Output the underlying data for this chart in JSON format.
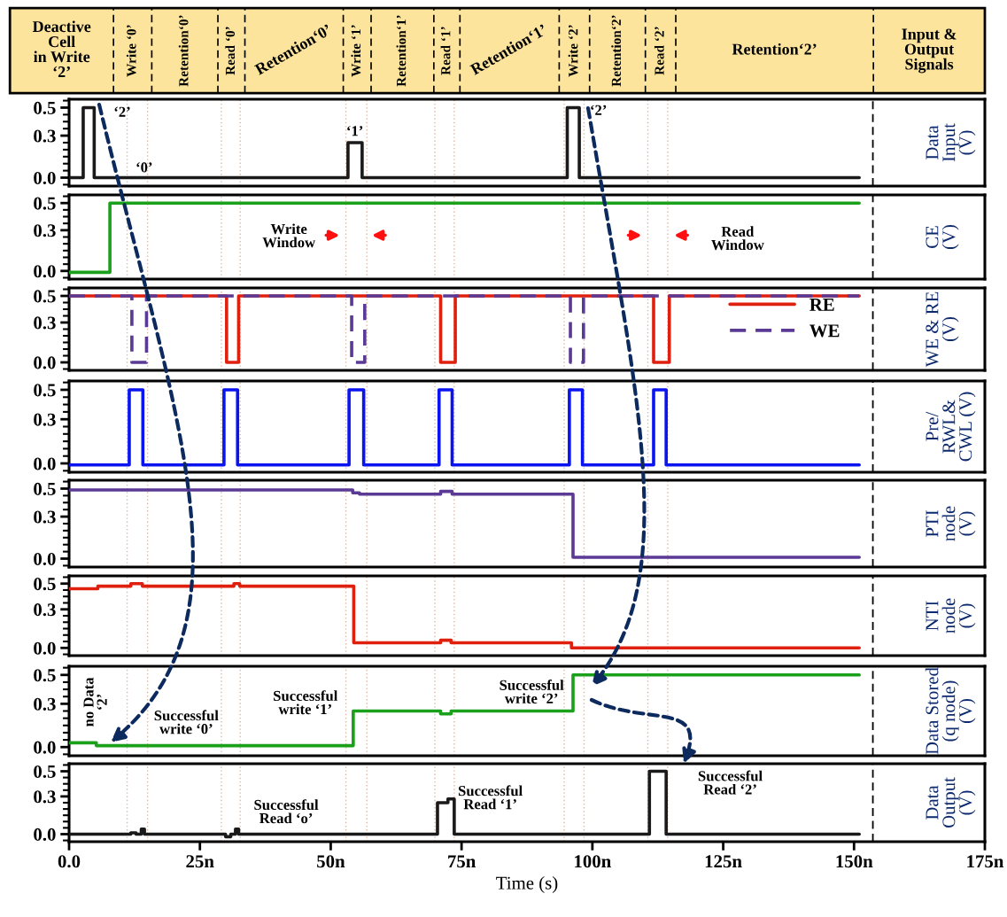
{
  "chart_data": [
    {
      "type": "line",
      "ylabel": "Data\nInput\n(V)",
      "xlim": [
        0,
        175
      ],
      "ylim": [
        -0.06,
        0.56
      ],
      "tick_labels": "y",
      "yticks": [
        {
          "value": -0.05,
          "label": null
        },
        {
          "value": 0,
          "label": "0.0"
        },
        {
          "value": 0.05,
          "label": null
        },
        {
          "value": 0.1,
          "label": null
        },
        {
          "value": 0.15,
          "label": null
        },
        {
          "value": 0.2,
          "label": null
        },
        {
          "value": 0.25,
          "label": null
        },
        {
          "value": 0.3,
          "label": "0.3"
        },
        {
          "value": 0.35,
          "label": null
        },
        {
          "value": 0.4,
          "label": null
        },
        {
          "value": 0.45,
          "label": null
        },
        {
          "value": 0.5,
          "label": "0.5"
        },
        {
          "value": 0.55,
          "label": null
        }
      ],
      "series": [
        {
          "color": "#1a1a1a",
          "x": [
            0,
            2.7,
            2.7,
            4.8,
            4.8,
            53.3,
            53.3,
            56.0,
            56.0,
            95.2,
            95.2,
            97.5,
            97.5,
            151
          ],
          "values": [
            0,
            0,
            0.5,
            0.5,
            0,
            0,
            0.25,
            0.25,
            0,
            0,
            0.5,
            0.5,
            0,
            0
          ]
        }
      ],
      "annotations": [
        "‘2’",
        "‘0’",
        "‘1’",
        "‘2’",
        "Deactive\nCell\nin Write\n‘2’",
        "Write ‘0’",
        "Retention‘0’",
        "Read ‘0’",
        "Retention‘0’",
        "Write ‘1’",
        "Retention‘1’",
        "Read ‘1’",
        "Retention‘1’",
        "Write ‘2’",
        "Retention‘2’",
        "Read ‘2’",
        "Retention‘2’",
        "Input &\nOutput\nSignals"
      ],
      "ref_lines": [
        {
          "axis": "x",
          "value": 11.1,
          "color": "#e0b8a0",
          "line_style": "dotted"
        },
        {
          "axis": "x",
          "value": 15.0,
          "color": "#e0b8a0",
          "line_style": "dotted"
        },
        {
          "axis": "x",
          "value": 29.1,
          "color": "#e0b8a0",
          "line_style": "dotted"
        },
        {
          "axis": "x",
          "value": 32.7,
          "color": "#e0b8a0",
          "line_style": "dotted"
        },
        {
          "axis": "x",
          "value": 52.9,
          "color": "#e0b8a0",
          "line_style": "dotted"
        },
        {
          "axis": "x",
          "value": 56.9,
          "color": "#e0b8a0",
          "line_style": "dotted"
        },
        {
          "axis": "x",
          "value": 69.9,
          "color": "#e0b8a0",
          "line_style": "dotted"
        },
        {
          "axis": "x",
          "value": 73.6,
          "color": "#e0b8a0",
          "line_style": "dotted"
        },
        {
          "axis": "x",
          "value": 94.6,
          "color": "#e0b8a0",
          "line_style": "dotted"
        },
        {
          "axis": "x",
          "value": 98.4,
          "color": "#e0b8a0",
          "line_style": "dotted"
        },
        {
          "axis": "x",
          "value": 110.6,
          "color": "#e0b8a0",
          "line_style": "dotted"
        },
        {
          "axis": "x",
          "value": 114.4,
          "color": "#e0b8a0",
          "line_style": "dotted"
        },
        {
          "axis": "x",
          "value": 153.6,
          "color": "#000000",
          "line_style": "dashed"
        }
      ]
    },
    {
      "type": "line",
      "ylabel": "CE\n(V)",
      "xlim": [
        0,
        175
      ],
      "ylim": [
        -0.06,
        0.56
      ],
      "tick_labels": "y",
      "yticks": [
        {
          "value": -0.05,
          "label": null
        },
        {
          "value": 0,
          "label": "0.0"
        },
        {
          "value": 0.05,
          "label": null
        },
        {
          "value": 0.1,
          "label": null
        },
        {
          "value": 0.15,
          "label": null
        },
        {
          "value": 0.2,
          "label": null
        },
        {
          "value": 0.25,
          "label": null
        },
        {
          "value": 0.3,
          "label": "0.3"
        },
        {
          "value": 0.35,
          "label": null
        },
        {
          "value": 0.4,
          "label": null
        },
        {
          "value": 0.45,
          "label": null
        },
        {
          "value": 0.5,
          "label": "0.5"
        },
        {
          "value": 0.55,
          "label": null
        }
      ],
      "series": [
        {
          "color": "#1aa01a",
          "x": [
            0,
            7.8,
            7.8,
            151
          ],
          "values": [
            -0.01,
            -0.01,
            0.5,
            0.5
          ]
        }
      ],
      "annotations": [
        "Write\nWindow",
        "Read\nWindow"
      ],
      "ref_lines": [
        {
          "axis": "x",
          "value": 11.1,
          "color": "#e0b8a0",
          "line_style": "dotted"
        },
        {
          "axis": "x",
          "value": 15.0,
          "color": "#e0b8a0",
          "line_style": "dotted"
        },
        {
          "axis": "x",
          "value": 29.1,
          "color": "#e0b8a0",
          "line_style": "dotted"
        },
        {
          "axis": "x",
          "value": 32.7,
          "color": "#e0b8a0",
          "line_style": "dotted"
        },
        {
          "axis": "x",
          "value": 52.9,
          "color": "#e0b8a0",
          "line_style": "dotted"
        },
        {
          "axis": "x",
          "value": 56.9,
          "color": "#e0b8a0",
          "line_style": "dotted"
        },
        {
          "axis": "x",
          "value": 69.9,
          "color": "#e0b8a0",
          "line_style": "dotted"
        },
        {
          "axis": "x",
          "value": 73.6,
          "color": "#e0b8a0",
          "line_style": "dotted"
        },
        {
          "axis": "x",
          "value": 94.6,
          "color": "#e0b8a0",
          "line_style": "dotted"
        },
        {
          "axis": "x",
          "value": 98.4,
          "color": "#e0b8a0",
          "line_style": "dotted"
        },
        {
          "axis": "x",
          "value": 110.6,
          "color": "#e0b8a0",
          "line_style": "dotted"
        },
        {
          "axis": "x",
          "value": 114.4,
          "color": "#e0b8a0",
          "line_style": "dotted"
        },
        {
          "axis": "x",
          "value": 153.6,
          "color": "#000000",
          "line_style": "dashed"
        }
      ]
    },
    {
      "type": "line",
      "ylabel": "WE & RE\n(V)",
      "xlim": [
        0,
        175
      ],
      "ylim": [
        -0.06,
        0.56
      ],
      "tick_labels": "y",
      "legend": "right",
      "yticks": [
        {
          "value": -0.05,
          "label": null
        },
        {
          "value": 0,
          "label": "0.0"
        },
        {
          "value": 0.05,
          "label": null
        },
        {
          "value": 0.1,
          "label": null
        },
        {
          "value": 0.15,
          "label": null
        },
        {
          "value": 0.2,
          "label": null
        },
        {
          "value": 0.25,
          "label": null
        },
        {
          "value": 0.3,
          "label": "0.3"
        },
        {
          "value": 0.35,
          "label": null
        },
        {
          "value": 0.4,
          "label": null
        },
        {
          "value": 0.45,
          "label": null
        },
        {
          "value": 0.5,
          "label": "0.5"
        },
        {
          "value": 0.55,
          "label": null
        }
      ],
      "series": [
        {
          "name": "RE",
          "color": "#e0200f",
          "line_style": "solid",
          "x": [
            0,
            30.1,
            30.1,
            32.4,
            32.4,
            71.0,
            71.0,
            73.8,
            73.8,
            111.7,
            111.7,
            114.7,
            114.7,
            151
          ],
          "values": [
            0.5,
            0.5,
            0,
            0,
            0.5,
            0.5,
            0,
            0,
            0.5,
            0.5,
            0,
            0,
            0.5,
            0.5
          ]
        },
        {
          "name": "WE",
          "color": "#5b3a96",
          "line_style": "dashed",
          "x": [
            0,
            12.0,
            12.0,
            14.8,
            14.8,
            54.0,
            54.0,
            56.5,
            56.5,
            95.8,
            95.8,
            98.3,
            98.3,
            151
          ],
          "values": [
            0.5,
            0.5,
            0,
            0,
            0.5,
            0.5,
            0,
            0,
            0.5,
            0.5,
            0,
            0,
            0.5,
            0.5
          ]
        }
      ],
      "ref_lines": [
        {
          "axis": "x",
          "value": 11.1,
          "color": "#e0b8a0",
          "line_style": "dotted"
        },
        {
          "axis": "x",
          "value": 15.0,
          "color": "#e0b8a0",
          "line_style": "dotted"
        },
        {
          "axis": "x",
          "value": 29.1,
          "color": "#e0b8a0",
          "line_style": "dotted"
        },
        {
          "axis": "x",
          "value": 32.7,
          "color": "#e0b8a0",
          "line_style": "dotted"
        },
        {
          "axis": "x",
          "value": 52.9,
          "color": "#e0b8a0",
          "line_style": "dotted"
        },
        {
          "axis": "x",
          "value": 56.9,
          "color": "#e0b8a0",
          "line_style": "dotted"
        },
        {
          "axis": "x",
          "value": 69.9,
          "color": "#e0b8a0",
          "line_style": "dotted"
        },
        {
          "axis": "x",
          "value": 73.6,
          "color": "#e0b8a0",
          "line_style": "dotted"
        },
        {
          "axis": "x",
          "value": 94.6,
          "color": "#e0b8a0",
          "line_style": "dotted"
        },
        {
          "axis": "x",
          "value": 98.4,
          "color": "#e0b8a0",
          "line_style": "dotted"
        },
        {
          "axis": "x",
          "value": 110.6,
          "color": "#e0b8a0",
          "line_style": "dotted"
        },
        {
          "axis": "x",
          "value": 114.4,
          "color": "#e0b8a0",
          "line_style": "dotted"
        },
        {
          "axis": "x",
          "value": 153.6,
          "color": "#000000",
          "line_style": "dashed"
        }
      ]
    },
    {
      "type": "line",
      "ylabel": "Pre/\nRWL&\nCWL (V)",
      "xlim": [
        0,
        175
      ],
      "ylim": [
        -0.06,
        0.56
      ],
      "tick_labels": "y",
      "yticks": [
        {
          "value": -0.05,
          "label": null
        },
        {
          "value": 0,
          "label": "0.0"
        },
        {
          "value": 0.05,
          "label": null
        },
        {
          "value": 0.1,
          "label": null
        },
        {
          "value": 0.15,
          "label": null
        },
        {
          "value": 0.2,
          "label": null
        },
        {
          "value": 0.25,
          "label": null
        },
        {
          "value": 0.3,
          "label": "0.3"
        },
        {
          "value": 0.35,
          "label": null
        },
        {
          "value": 0.4,
          "label": null
        },
        {
          "value": 0.45,
          "label": null
        },
        {
          "value": 0.5,
          "label": "0.5"
        },
        {
          "value": 0.55,
          "label": null
        }
      ],
      "series": [
        {
          "color": "#0a14f0",
          "x": [
            0,
            11.5,
            11.5,
            14.1,
            14.1,
            29.6,
            29.6,
            32.2,
            32.2,
            53.5,
            53.5,
            56.3,
            56.3,
            70.7,
            70.7,
            73.2,
            73.2,
            95.6,
            95.6,
            98.1,
            98.1,
            111.7,
            111.7,
            114.1,
            114.1,
            151
          ],
          "values": [
            -0.01,
            -0.01,
            0.5,
            0.5,
            -0.01,
            -0.01,
            0.5,
            0.5,
            -0.01,
            -0.01,
            0.5,
            0.5,
            -0.01,
            -0.01,
            0.5,
            0.5,
            -0.01,
            -0.01,
            0.5,
            0.5,
            -0.01,
            -0.01,
            0.5,
            0.5,
            -0.01,
            -0.01
          ]
        }
      ],
      "ref_lines": [
        {
          "axis": "x",
          "value": 11.1,
          "color": "#e0b8a0",
          "line_style": "dotted"
        },
        {
          "axis": "x",
          "value": 15.0,
          "color": "#e0b8a0",
          "line_style": "dotted"
        },
        {
          "axis": "x",
          "value": 29.1,
          "color": "#e0b8a0",
          "line_style": "dotted"
        },
        {
          "axis": "x",
          "value": 32.7,
          "color": "#e0b8a0",
          "line_style": "dotted"
        },
        {
          "axis": "x",
          "value": 52.9,
          "color": "#e0b8a0",
          "line_style": "dotted"
        },
        {
          "axis": "x",
          "value": 56.9,
          "color": "#e0b8a0",
          "line_style": "dotted"
        },
        {
          "axis": "x",
          "value": 69.9,
          "color": "#e0b8a0",
          "line_style": "dotted"
        },
        {
          "axis": "x",
          "value": 73.6,
          "color": "#e0b8a0",
          "line_style": "dotted"
        },
        {
          "axis": "x",
          "value": 94.6,
          "color": "#e0b8a0",
          "line_style": "dotted"
        },
        {
          "axis": "x",
          "value": 98.4,
          "color": "#e0b8a0",
          "line_style": "dotted"
        },
        {
          "axis": "x",
          "value": 110.6,
          "color": "#e0b8a0",
          "line_style": "dotted"
        },
        {
          "axis": "x",
          "value": 114.4,
          "color": "#e0b8a0",
          "line_style": "dotted"
        },
        {
          "axis": "x",
          "value": 153.6,
          "color": "#000000",
          "line_style": "dashed"
        }
      ]
    },
    {
      "type": "line",
      "ylabel": "PTI\nnode\n(V)",
      "xlim": [
        0,
        175
      ],
      "ylim": [
        -0.06,
        0.56
      ],
      "tick_labels": "y",
      "yticks": [
        {
          "value": -0.05,
          "label": null
        },
        {
          "value": 0,
          "label": "0.0"
        },
        {
          "value": 0.05,
          "label": null
        },
        {
          "value": 0.1,
          "label": null
        },
        {
          "value": 0.15,
          "label": null
        },
        {
          "value": 0.2,
          "label": null
        },
        {
          "value": 0.25,
          "label": null
        },
        {
          "value": 0.3,
          "label": "0.3"
        },
        {
          "value": 0.35,
          "label": null
        },
        {
          "value": 0.4,
          "label": null
        },
        {
          "value": 0.45,
          "label": null
        },
        {
          "value": 0.5,
          "label": "0.5"
        },
        {
          "value": 0.55,
          "label": null
        }
      ],
      "series": [
        {
          "color": "#5b3a96",
          "x": [
            0,
            54.2,
            54.2,
            55.5,
            55.5,
            71.0,
            71.0,
            73.2,
            73.2,
            96.3,
            96.3,
            151
          ],
          "values": [
            0.49,
            0.49,
            0.47,
            0.47,
            0.46,
            0.46,
            0.48,
            0.48,
            0.46,
            0.46,
            0.01,
            0.01
          ]
        }
      ],
      "ref_lines": [
        {
          "axis": "x",
          "value": 11.1,
          "color": "#e0b8a0",
          "line_style": "dotted"
        },
        {
          "axis": "x",
          "value": 15.0,
          "color": "#e0b8a0",
          "line_style": "dotted"
        },
        {
          "axis": "x",
          "value": 29.1,
          "color": "#e0b8a0",
          "line_style": "dotted"
        },
        {
          "axis": "x",
          "value": 32.7,
          "color": "#e0b8a0",
          "line_style": "dotted"
        },
        {
          "axis": "x",
          "value": 52.9,
          "color": "#e0b8a0",
          "line_style": "dotted"
        },
        {
          "axis": "x",
          "value": 56.9,
          "color": "#e0b8a0",
          "line_style": "dotted"
        },
        {
          "axis": "x",
          "value": 69.9,
          "color": "#e0b8a0",
          "line_style": "dotted"
        },
        {
          "axis": "x",
          "value": 73.6,
          "color": "#e0b8a0",
          "line_style": "dotted"
        },
        {
          "axis": "x",
          "value": 94.6,
          "color": "#e0b8a0",
          "line_style": "dotted"
        },
        {
          "axis": "x",
          "value": 98.4,
          "color": "#e0b8a0",
          "line_style": "dotted"
        },
        {
          "axis": "x",
          "value": 110.6,
          "color": "#e0b8a0",
          "line_style": "dotted"
        },
        {
          "axis": "x",
          "value": 114.4,
          "color": "#e0b8a0",
          "line_style": "dotted"
        },
        {
          "axis": "x",
          "value": 153.6,
          "color": "#000000",
          "line_style": "dashed"
        }
      ]
    },
    {
      "type": "line",
      "ylabel": "NTI\nnode\n(V)",
      "xlim": [
        0,
        175
      ],
      "ylim": [
        -0.06,
        0.56
      ],
      "tick_labels": "y",
      "yticks": [
        {
          "value": -0.05,
          "label": null
        },
        {
          "value": 0,
          "label": "0.0"
        },
        {
          "value": 0.05,
          "label": null
        },
        {
          "value": 0.1,
          "label": null
        },
        {
          "value": 0.15,
          "label": null
        },
        {
          "value": 0.2,
          "label": null
        },
        {
          "value": 0.25,
          "label": null
        },
        {
          "value": 0.3,
          "label": "0.3"
        },
        {
          "value": 0.35,
          "label": null
        },
        {
          "value": 0.4,
          "label": null
        },
        {
          "value": 0.45,
          "label": null
        },
        {
          "value": 0.5,
          "label": "0.5"
        },
        {
          "value": 0.55,
          "label": null
        }
      ],
      "series": [
        {
          "color": "#e0200f",
          "x": [
            0,
            5.5,
            5.5,
            11.8,
            11.8,
            14.0,
            14.0,
            31.5,
            31.5,
            32.6,
            32.6,
            54.4,
            54.4,
            71.0,
            71.0,
            73.0,
            73.0,
            96.0,
            96.0,
            151
          ],
          "values": [
            0.46,
            0.46,
            0.48,
            0.48,
            0.5,
            0.5,
            0.48,
            0.48,
            0.5,
            0.5,
            0.48,
            0.48,
            0.04,
            0.04,
            0.06,
            0.06,
            0.04,
            0.04,
            0.0,
            0.0
          ]
        }
      ],
      "ref_lines": [
        {
          "axis": "x",
          "value": 11.1,
          "color": "#e0b8a0",
          "line_style": "dotted"
        },
        {
          "axis": "x",
          "value": 15.0,
          "color": "#e0b8a0",
          "line_style": "dotted"
        },
        {
          "axis": "x",
          "value": 29.1,
          "color": "#e0b8a0",
          "line_style": "dotted"
        },
        {
          "axis": "x",
          "value": 32.7,
          "color": "#e0b8a0",
          "line_style": "dotted"
        },
        {
          "axis": "x",
          "value": 52.9,
          "color": "#e0b8a0",
          "line_style": "dotted"
        },
        {
          "axis": "x",
          "value": 56.9,
          "color": "#e0b8a0",
          "line_style": "dotted"
        },
        {
          "axis": "x",
          "value": 69.9,
          "color": "#e0b8a0",
          "line_style": "dotted"
        },
        {
          "axis": "x",
          "value": 73.6,
          "color": "#e0b8a0",
          "line_style": "dotted"
        },
        {
          "axis": "x",
          "value": 94.6,
          "color": "#e0b8a0",
          "line_style": "dotted"
        },
        {
          "axis": "x",
          "value": 98.4,
          "color": "#e0b8a0",
          "line_style": "dotted"
        },
        {
          "axis": "x",
          "value": 110.6,
          "color": "#e0b8a0",
          "line_style": "dotted"
        },
        {
          "axis": "x",
          "value": 114.4,
          "color": "#e0b8a0",
          "line_style": "dotted"
        },
        {
          "axis": "x",
          "value": 153.6,
          "color": "#000000",
          "line_style": "dashed"
        }
      ]
    },
    {
      "type": "line",
      "ylabel": "Data Stored\n(q node)\n(V)",
      "xlim": [
        0,
        175
      ],
      "ylim": [
        -0.06,
        0.56
      ],
      "tick_labels": "y",
      "yticks": [
        {
          "value": -0.05,
          "label": null
        },
        {
          "value": 0,
          "label": "0.0"
        },
        {
          "value": 0.05,
          "label": null
        },
        {
          "value": 0.1,
          "label": null
        },
        {
          "value": 0.15,
          "label": null
        },
        {
          "value": 0.2,
          "label": null
        },
        {
          "value": 0.25,
          "label": null
        },
        {
          "value": 0.3,
          "label": "0.3"
        },
        {
          "value": 0.35,
          "label": null
        },
        {
          "value": 0.4,
          "label": null
        },
        {
          "value": 0.45,
          "label": null
        },
        {
          "value": 0.5,
          "label": "0.5"
        },
        {
          "value": 0.55,
          "label": null
        }
      ],
      "series": [
        {
          "color": "#1aa01a",
          "x": [
            0,
            5.2,
            5.2,
            54.3,
            54.3,
            71.0,
            71.0,
            73.0,
            73.0,
            96.3,
            96.3,
            151
          ],
          "values": [
            0.03,
            0.03,
            0.01,
            0.01,
            0.25,
            0.25,
            0.23,
            0.23,
            0.25,
            0.25,
            0.5,
            0.5
          ]
        }
      ],
      "annotations": [
        "no Data\n‘2’",
        "Successful\nwrite ‘0’",
        "Successful\nwrite ‘1’",
        "Successful\nwrite ‘2’"
      ],
      "ref_lines": [
        {
          "axis": "x",
          "value": 11.1,
          "color": "#e0b8a0",
          "line_style": "dotted"
        },
        {
          "axis": "x",
          "value": 15.0,
          "color": "#e0b8a0",
          "line_style": "dotted"
        },
        {
          "axis": "x",
          "value": 29.1,
          "color": "#e0b8a0",
          "line_style": "dotted"
        },
        {
          "axis": "x",
          "value": 32.7,
          "color": "#e0b8a0",
          "line_style": "dotted"
        },
        {
          "axis": "x",
          "value": 52.9,
          "color": "#e0b8a0",
          "line_style": "dotted"
        },
        {
          "axis": "x",
          "value": 56.9,
          "color": "#e0b8a0",
          "line_style": "dotted"
        },
        {
          "axis": "x",
          "value": 69.9,
          "color": "#e0b8a0",
          "line_style": "dotted"
        },
        {
          "axis": "x",
          "value": 73.6,
          "color": "#e0b8a0",
          "line_style": "dotted"
        },
        {
          "axis": "x",
          "value": 94.6,
          "color": "#e0b8a0",
          "line_style": "dotted"
        },
        {
          "axis": "x",
          "value": 98.4,
          "color": "#e0b8a0",
          "line_style": "dotted"
        },
        {
          "axis": "x",
          "value": 110.6,
          "color": "#e0b8a0",
          "line_style": "dotted"
        },
        {
          "axis": "x",
          "value": 114.4,
          "color": "#e0b8a0",
          "line_style": "dotted"
        },
        {
          "axis": "x",
          "value": 153.6,
          "color": "#000000",
          "line_style": "dashed"
        }
      ]
    },
    {
      "type": "line",
      "ylabel": "Data\nOutput\n(V)",
      "xlabel": "Time (s)",
      "xlim": [
        0,
        175
      ],
      "ylim": [
        -0.06,
        0.56
      ],
      "xticks": [
        {
          "value": 0,
          "label": "0.0"
        },
        {
          "value": 25,
          "label": "25n"
        },
        {
          "value": 50,
          "label": "50n"
        },
        {
          "value": 75,
          "label": "75n"
        },
        {
          "value": 100,
          "label": "100n"
        },
        {
          "value": 125,
          "label": "125n"
        },
        {
          "value": 150,
          "label": "150n"
        },
        {
          "value": 175,
          "label": "175n"
        }
      ],
      "yticks": [
        {
          "value": -0.05,
          "label": null
        },
        {
          "value": 0,
          "label": "0.0"
        },
        {
          "value": 0.05,
          "label": null
        },
        {
          "value": 0.1,
          "label": null
        },
        {
          "value": 0.15,
          "label": null
        },
        {
          "value": 0.2,
          "label": null
        },
        {
          "value": 0.25,
          "label": null
        },
        {
          "value": 0.3,
          "label": "0.3"
        },
        {
          "value": 0.35,
          "label": null
        },
        {
          "value": 0.4,
          "label": null
        },
        {
          "value": 0.45,
          "label": null
        },
        {
          "value": 0.5,
          "label": "0.5"
        },
        {
          "value": 0.55,
          "label": null
        }
      ],
      "series": [
        {
          "color": "#1a1a1a",
          "x": [
            0,
            11.8,
            11.8,
            12.8,
            12.8,
            13.8,
            13.8,
            14.4,
            14.4,
            29.9,
            29.9,
            30.9,
            30.9,
            31.8,
            31.8,
            32.4,
            32.4,
            70.4,
            70.4,
            72.4,
            72.4,
            73.6,
            73.6,
            110.9,
            110.9,
            114.1,
            114.1,
            151
          ],
          "values": [
            0,
            0,
            0.01,
            0.01,
            0,
            0,
            0.04,
            0.04,
            0,
            0,
            -0.02,
            -0.02,
            0,
            0,
            0.04,
            0.04,
            0,
            0,
            0.25,
            0.25,
            0.28,
            0.28,
            0,
            0,
            0.5,
            0.5,
            0,
            0
          ]
        }
      ],
      "annotations": [
        "Successful\nRead ‘o’",
        "Successful\nRead ‘1’",
        "Successful\nRead ‘2’"
      ],
      "ref_lines": [
        {
          "axis": "x",
          "value": 11.1,
          "color": "#e0b8a0",
          "line_style": "dotted"
        },
        {
          "axis": "x",
          "value": 15.0,
          "color": "#e0b8a0",
          "line_style": "dotted"
        },
        {
          "axis": "x",
          "value": 29.1,
          "color": "#e0b8a0",
          "line_style": "dotted"
        },
        {
          "axis": "x",
          "value": 32.7,
          "color": "#e0b8a0",
          "line_style": "dotted"
        },
        {
          "axis": "x",
          "value": 52.9,
          "color": "#e0b8a0",
          "line_style": "dotted"
        },
        {
          "axis": "x",
          "value": 56.9,
          "color": "#e0b8a0",
          "line_style": "dotted"
        },
        {
          "axis": "x",
          "value": 69.9,
          "color": "#e0b8a0",
          "line_style": "dotted"
        },
        {
          "axis": "x",
          "value": 73.6,
          "color": "#e0b8a0",
          "line_style": "dotted"
        },
        {
          "axis": "x",
          "value": 94.6,
          "color": "#e0b8a0",
          "line_style": "dotted"
        },
        {
          "axis": "x",
          "value": 98.4,
          "color": "#e0b8a0",
          "line_style": "dotted"
        },
        {
          "axis": "x",
          "value": 110.6,
          "color": "#e0b8a0",
          "line_style": "dotted"
        },
        {
          "axis": "x",
          "value": 114.4,
          "color": "#e0b8a0",
          "line_style": "dotted"
        },
        {
          "axis": "x",
          "value": 153.6,
          "color": "#000000",
          "line_style": "dashed"
        }
      ]
    }
  ]
}
